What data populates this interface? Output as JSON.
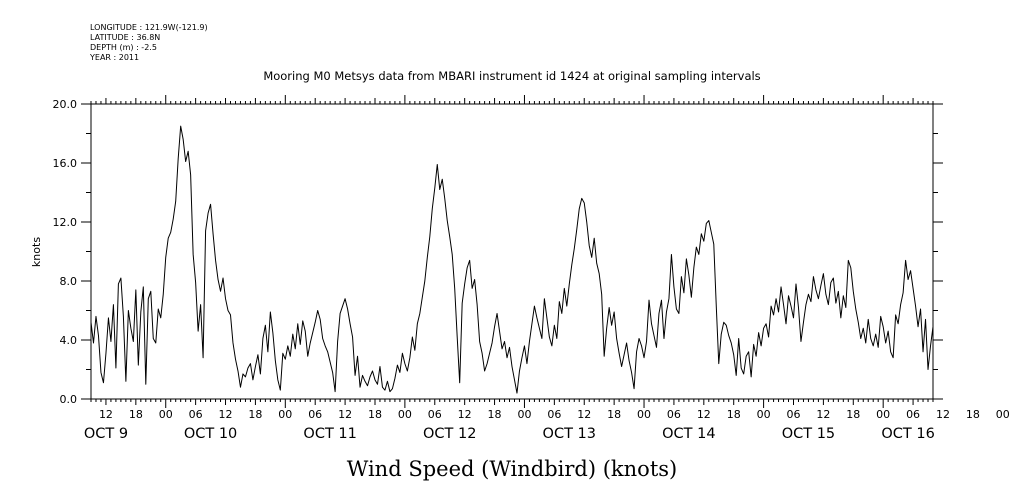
{
  "header": {
    "meta_lines": [
      "LONGITUDE : 121.9W(-121.9)",
      "LATITUDE : 36.8N",
      "DEPTH (m) : -2.5",
      "YEAR : 2011"
    ]
  },
  "chart_data": {
    "type": "line",
    "title": "Mooring M0 Metsys data from MBARI instrument id 1424 at original sampling intervals",
    "xlabel": "Wind Speed (Windbird) (knots)",
    "ylabel": "knots",
    "ylim": [
      0,
      20
    ],
    "yticks": [
      0,
      4,
      8,
      12,
      16,
      20
    ],
    "ytick_labels": [
      "0.0",
      "4.0",
      "8.0",
      "12.0",
      "16.0",
      "20.0"
    ],
    "xlim_hours": [
      225,
      394
    ],
    "xtick_hour_labels": [
      "12",
      "18",
      "00",
      "06",
      "12",
      "18",
      "00",
      "06",
      "12",
      "18",
      "00",
      "06",
      "12",
      "18",
      "00",
      "06",
      "12",
      "18",
      "00",
      "06",
      "12",
      "18",
      "00",
      "06",
      "12",
      "18",
      "00",
      "06",
      "12",
      "18",
      "00",
      "06"
    ],
    "day_labels": [
      "OCT  9",
      "OCT 10",
      "OCT 11",
      "OCT 12",
      "OCT 13",
      "OCT 14",
      "OCT 15",
      "OCT 16"
    ],
    "grid": false,
    "series": [
      {
        "x_start": "2011-10-08 09:00",
        "x_step_hours": 0.5,
        "values": [
          5.2,
          3.8,
          5.6,
          4.3,
          1.8,
          1.1,
          3.1,
          5.5,
          3.9,
          6.4,
          2.1,
          7.8,
          8.2,
          5.6,
          1.2,
          6.0,
          4.8,
          3.9,
          7.4,
          2.3,
          5.9,
          7.6,
          1.0,
          6.8,
          7.3,
          4.1,
          3.8,
          6.1,
          5.5,
          7.1,
          9.6,
          10.9,
          11.3,
          12.2,
          13.4,
          16.3,
          18.5,
          17.6,
          16.1,
          16.8,
          15.2,
          9.8,
          7.9,
          4.6,
          6.4,
          2.8,
          11.4,
          12.6,
          13.2,
          11.2,
          9.4,
          8.1,
          7.3,
          8.2,
          6.8,
          6.0,
          5.7,
          3.8,
          2.7,
          1.9,
          0.8,
          1.7,
          1.5,
          2.1,
          2.4,
          1.3,
          2.2,
          3.0,
          1.7,
          4.1,
          5.0,
          3.2,
          5.9,
          4.5,
          2.6,
          1.3,
          0.6,
          3.1,
          2.7,
          3.6,
          2.9,
          4.4,
          3.4,
          5.1,
          3.7,
          5.3,
          4.6,
          2.9,
          3.8,
          4.5,
          5.2,
          6.0,
          5.4,
          4.1,
          3.6,
          3.2,
          2.5,
          1.8,
          0.5,
          3.9,
          5.8,
          6.3,
          6.8,
          6.1,
          5.1,
          4.2,
          1.6,
          2.9,
          0.8,
          1.6,
          1.2,
          0.9,
          1.5,
          1.9,
          1.3,
          1.0,
          2.2,
          0.8,
          0.6,
          1.2,
          0.5,
          0.7,
          1.4,
          2.3,
          1.8,
          3.1,
          2.4,
          1.9,
          2.8,
          4.2,
          3.3,
          5.1,
          5.8,
          6.9,
          8.0,
          9.6,
          11.0,
          12.9,
          14.3,
          15.9,
          14.2,
          14.9,
          13.6,
          12.1,
          11.0,
          9.8,
          7.5,
          4.2,
          1.1,
          6.5,
          7.8,
          8.9,
          9.4,
          7.5,
          8.1,
          6.4,
          3.9,
          3.1,
          1.9,
          2.4,
          3.1,
          3.8,
          4.9,
          5.8,
          4.6,
          3.4,
          3.9,
          2.8,
          3.5,
          2.2,
          1.3,
          0.4,
          1.9,
          2.8,
          3.6,
          2.4,
          3.9,
          5.1,
          6.3,
          5.5,
          4.8,
          4.1,
          6.8,
          5.5,
          4.2,
          3.6,
          5.0,
          4.1,
          6.6,
          5.8,
          7.5,
          6.3,
          7.8,
          9.1,
          10.2,
          11.5,
          12.9,
          13.6,
          13.3,
          12.0,
          10.4,
          9.6,
          10.9,
          9.2,
          8.5,
          7.1,
          2.9,
          4.8,
          6.2,
          5.0,
          5.9,
          4.1,
          3.1,
          2.2,
          3.0,
          3.8,
          2.6,
          1.8,
          0.7,
          3.2,
          4.1,
          3.6,
          2.8,
          3.9,
          6.7,
          5.1,
          4.3,
          3.5,
          5.8,
          6.7,
          4.1,
          5.9,
          6.8,
          9.8,
          7.6,
          6.1,
          5.8,
          8.3,
          7.2,
          9.5,
          8.4,
          6.9,
          8.9,
          10.3,
          9.8,
          11.2,
          10.7,
          11.9,
          12.1,
          11.3,
          10.5,
          6.3,
          2.4,
          4.4,
          5.2,
          5.0,
          4.3,
          3.8,
          3.0,
          1.6,
          4.1,
          2.1,
          1.7,
          2.9,
          3.2,
          1.5,
          3.7,
          2.9,
          4.5,
          3.6,
          4.8,
          5.1,
          4.2,
          6.3,
          5.7,
          6.8,
          5.9,
          7.6,
          6.4,
          5.1,
          7.0,
          6.3,
          5.5,
          7.8,
          6.2,
          3.9,
          5.2,
          6.4,
          7.1,
          6.6,
          8.3,
          7.4,
          6.8,
          7.7,
          8.5,
          7.1,
          6.4,
          7.9,
          8.2,
          6.5,
          7.3,
          5.5,
          7.0,
          6.2,
          9.4,
          8.9,
          7.3,
          6.1,
          5.2,
          4.1,
          4.8,
          3.8,
          5.4,
          4.1,
          3.6,
          4.4,
          3.5,
          5.6,
          4.9,
          3.8,
          4.6,
          3.2,
          2.8,
          5.7,
          5.1,
          6.4,
          7.2,
          9.4,
          8.1,
          8.7,
          7.5,
          6.3,
          4.9,
          6.1,
          3.2,
          5.4,
          2.0,
          3.6,
          4.9,
          2.7,
          4.1,
          3.2,
          5.7,
          4.6,
          3.3,
          2.9,
          5.9,
          4.4,
          3.8,
          2.1,
          1.6,
          2.3,
          4.5,
          4.2,
          6.8,
          5.6,
          3.9,
          4.8,
          6.6,
          5.5,
          7.3,
          8.4,
          9.7,
          10.2,
          12.3,
          11.8,
          10.9,
          11.6,
          9.6,
          12.8,
          12.1,
          12.6,
          11.2,
          10.1,
          9.3,
          9.0,
          7.8,
          6.2,
          5.6,
          5.1,
          4.9,
          5.3,
          4.5,
          4.9,
          5.6,
          5.2
        ]
      }
    ]
  }
}
